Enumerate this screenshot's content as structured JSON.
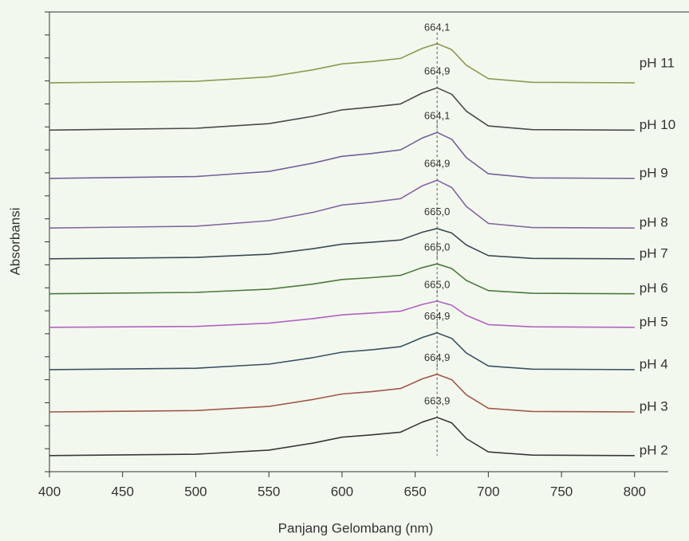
{
  "chart_data": {
    "type": "line",
    "x_label": "Panjang Gelombang (nm)",
    "y_label": "Absorbansi",
    "xlim": [
      400,
      823
    ],
    "ylim": [
      0,
      10
    ],
    "xticks": [
      400,
      450,
      500,
      550,
      600,
      650,
      700,
      750,
      800
    ],
    "yticks": [
      0,
      0.5,
      1,
      1.5,
      2,
      2.5,
      3,
      3.5,
      4,
      4.5,
      5,
      5.5,
      6,
      6.5,
      7,
      7.5,
      8,
      8.5,
      9,
      9.5,
      10
    ],
    "x": [
      400,
      500,
      550,
      580,
      600,
      620,
      640,
      655,
      665,
      675,
      685,
      700,
      730,
      800
    ],
    "series": [
      {
        "name": "pH 11",
        "color": "#8c9a52",
        "peak_label": "664,1",
        "values": [
          8.46,
          8.49,
          8.59,
          8.74,
          8.87,
          8.92,
          8.99,
          9.21,
          9.31,
          9.18,
          8.84,
          8.55,
          8.47,
          8.46
        ]
      },
      {
        "name": "pH 10",
        "color": "#4a4a4a",
        "peak_label": "664,9",
        "values": [
          7.43,
          7.47,
          7.57,
          7.73,
          7.87,
          7.93,
          8.0,
          8.24,
          8.35,
          8.21,
          7.84,
          7.52,
          7.44,
          7.43
        ]
      },
      {
        "name": "pH 9",
        "color": "#75609a",
        "peak_label": "664,1",
        "values": [
          6.38,
          6.42,
          6.53,
          6.71,
          6.86,
          6.92,
          7.0,
          7.26,
          7.38,
          7.23,
          6.83,
          6.48,
          6.39,
          6.38
        ]
      },
      {
        "name": "pH 8",
        "color": "#8466a0",
        "peak_label": "664,9",
        "values": [
          5.3,
          5.34,
          5.46,
          5.64,
          5.8,
          5.86,
          5.94,
          6.22,
          6.34,
          6.18,
          5.77,
          5.4,
          5.31,
          5.3
        ]
      },
      {
        "name": "pH 7",
        "color": "#3c4a58",
        "peak_label": "665,0",
        "values": [
          4.63,
          4.66,
          4.73,
          4.85,
          4.95,
          4.99,
          5.04,
          5.21,
          5.29,
          5.19,
          4.93,
          4.7,
          4.64,
          4.63
        ]
      },
      {
        "name": "pH 6",
        "color": "#4c7a3e",
        "peak_label": "665,0",
        "values": [
          3.87,
          3.9,
          3.97,
          4.08,
          4.18,
          4.22,
          4.27,
          4.44,
          4.52,
          4.42,
          4.16,
          3.94,
          3.88,
          3.87
        ]
      },
      {
        "name": "pH 5",
        "color": "#b162c2",
        "peak_label": "665,0",
        "values": [
          3.14,
          3.16,
          3.23,
          3.33,
          3.41,
          3.45,
          3.49,
          3.64,
          3.71,
          3.62,
          3.4,
          3.2,
          3.15,
          3.14
        ]
      },
      {
        "name": "pH 4",
        "color": "#3a5262",
        "peak_label": "664,9",
        "values": [
          2.22,
          2.25,
          2.34,
          2.48,
          2.6,
          2.65,
          2.72,
          2.92,
          3.02,
          2.9,
          2.58,
          2.3,
          2.23,
          2.22
        ]
      },
      {
        "name": "pH 3",
        "color": "#a0584a",
        "peak_label": "664,9",
        "values": [
          1.3,
          1.33,
          1.42,
          1.57,
          1.69,
          1.74,
          1.81,
          2.02,
          2.12,
          2.0,
          1.67,
          1.38,
          1.31,
          1.3
        ]
      },
      {
        "name": "pH 2",
        "color": "#383838",
        "peak_label": "663,9",
        "values": [
          0.35,
          0.38,
          0.47,
          0.62,
          0.75,
          0.8,
          0.86,
          1.08,
          1.18,
          1.06,
          0.72,
          0.43,
          0.36,
          0.35
        ]
      }
    ]
  }
}
